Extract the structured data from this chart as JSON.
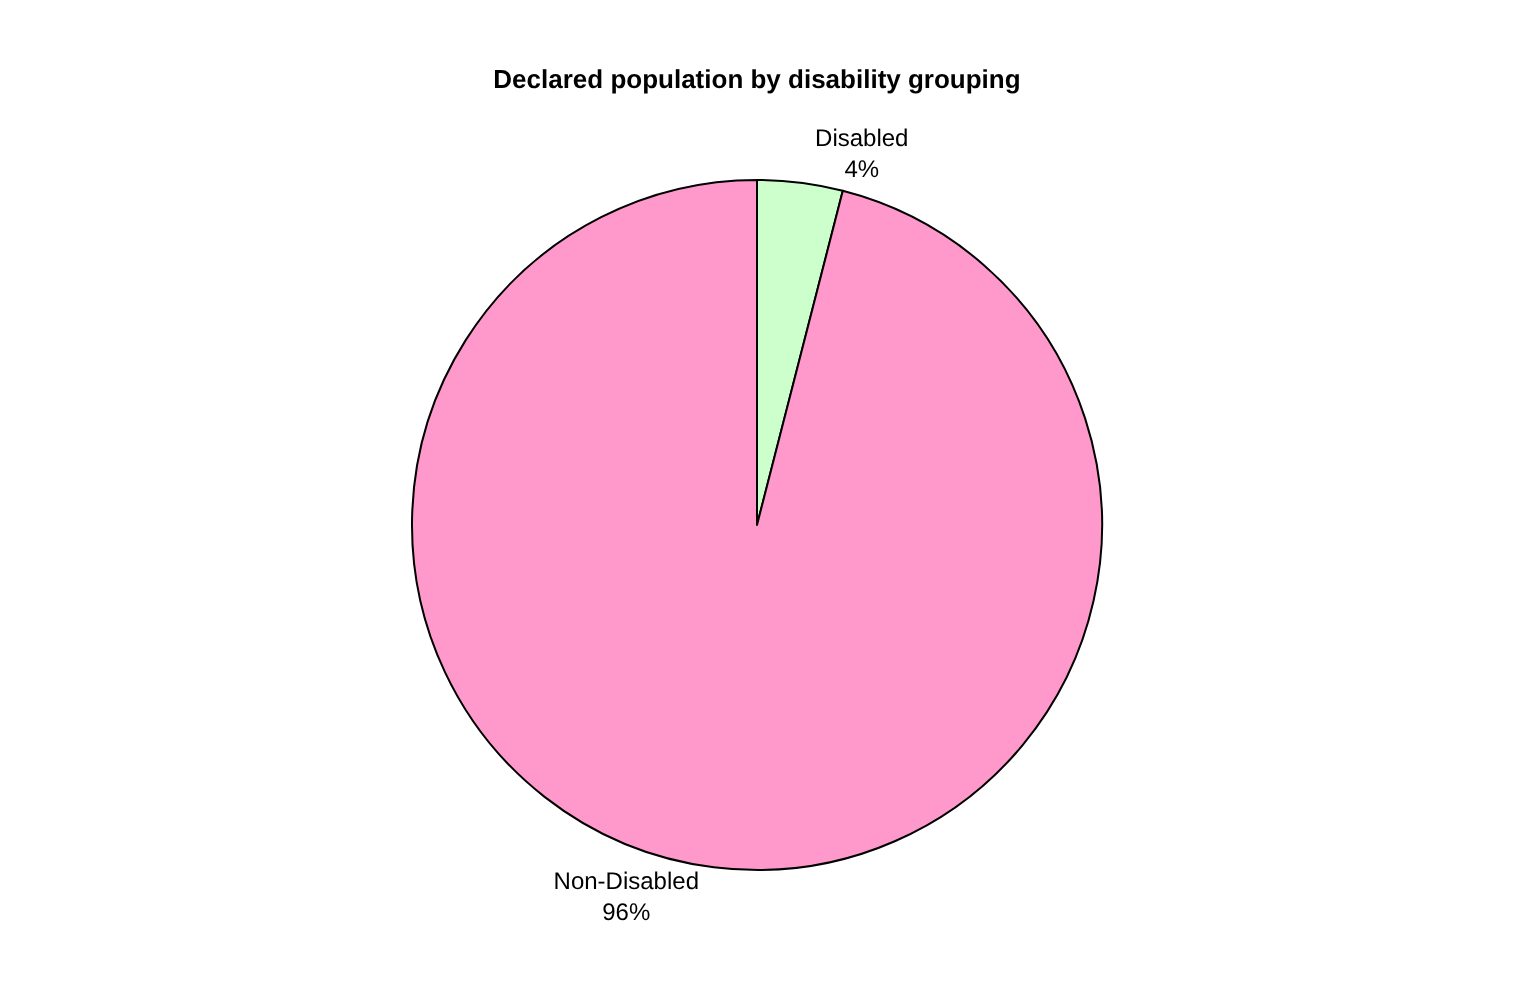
{
  "chart_data": {
    "type": "pie",
    "title": "Declared population by disability grouping",
    "categories": [
      "Disabled",
      "Non-Disabled"
    ],
    "values": [
      4,
      96
    ],
    "value_labels": [
      "4%",
      "96%"
    ],
    "colors": [
      "#ccffcc",
      "#ff99cc"
    ],
    "legend": false
  }
}
